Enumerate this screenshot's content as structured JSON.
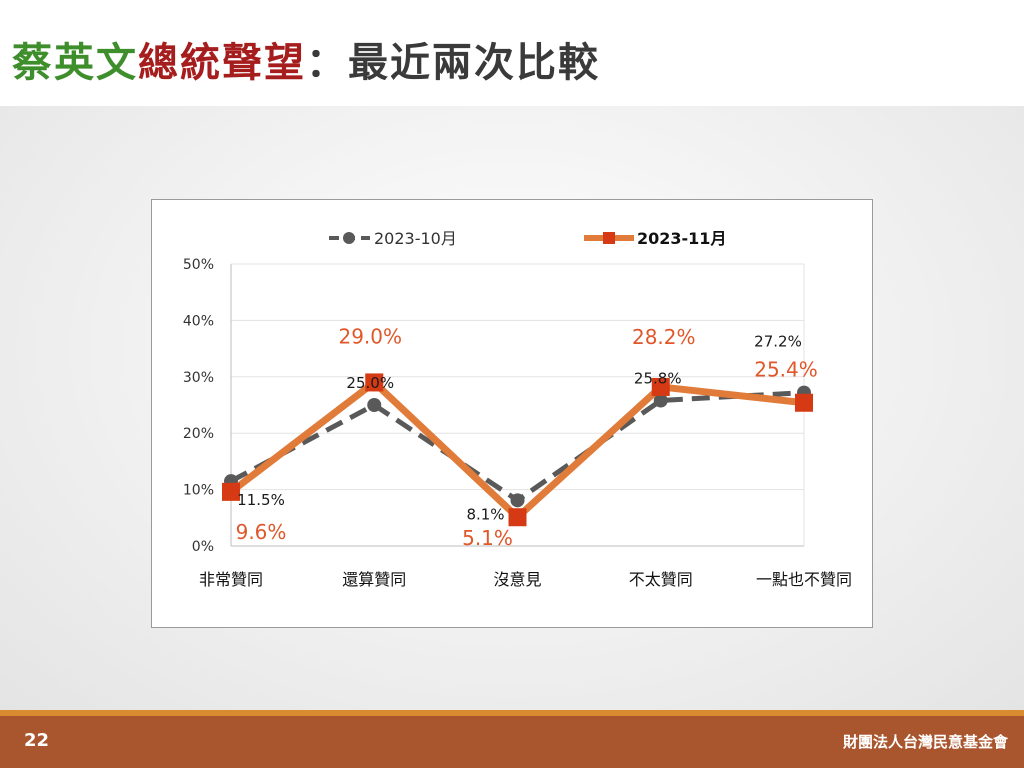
{
  "title": {
    "part1": "蔡英文",
    "part2": "總統聲望",
    "part3": "：最近兩次比較"
  },
  "footer": {
    "page_number": "22",
    "organization": "財團法人台灣民意基金會"
  },
  "colors": {
    "series1": "#595959",
    "series2_line": "#e07b39",
    "series2_marker": "#d63a14",
    "series2_label": "#e0572a"
  },
  "chart_data": {
    "type": "line",
    "categories": [
      "非常贊同",
      "還算贊同",
      "沒意見",
      "不太贊同",
      "一點也不贊同"
    ],
    "series": [
      {
        "name": "2023-10月",
        "values": [
          11.5,
          25.0,
          8.1,
          25.8,
          27.2
        ],
        "labels": [
          "11.5%",
          "25.0%",
          "8.1%",
          "25.8%",
          "27.2%"
        ],
        "style": "dashed",
        "marker": "circle"
      },
      {
        "name": "2023-11月",
        "values": [
          9.6,
          29.0,
          5.1,
          28.2,
          25.4
        ],
        "labels": [
          "9.6%",
          "29.0%",
          "5.1%",
          "28.2%",
          "25.4%"
        ],
        "style": "solid",
        "marker": "square"
      }
    ],
    "yticks": [
      "0%",
      "10%",
      "20%",
      "30%",
      "40%",
      "50%"
    ],
    "ylim": [
      0,
      50
    ],
    "grid": true,
    "legend_position": "top-center"
  }
}
